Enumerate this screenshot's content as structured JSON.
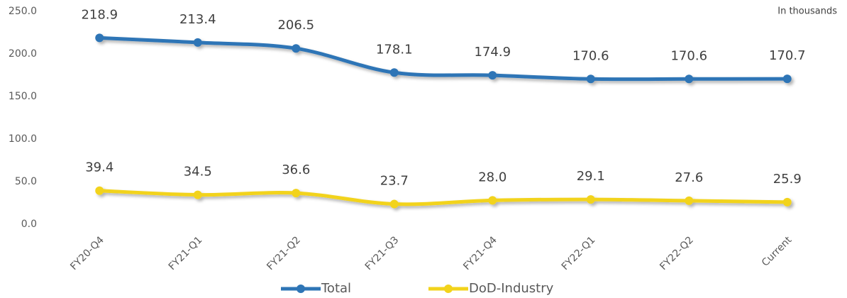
{
  "chart_data": {
    "type": "line",
    "annotation": "In thousands",
    "categories": [
      "FY20-Q4",
      "FY21-Q1",
      "FY21-Q2",
      "FY21-Q3",
      "FY21-Q4",
      "FY22-Q1",
      "FY22-Q2",
      "Current"
    ],
    "series": [
      {
        "name": "Total",
        "color": "#2e75b6",
        "values": [
          218.9,
          213.4,
          206.5,
          178.1,
          174.9,
          170.6,
          170.6,
          170.7
        ],
        "value_labels": [
          "218.9",
          "213.4",
          "206.5",
          "178.1",
          "174.9",
          "170.6",
          "170.6",
          "170.7"
        ]
      },
      {
        "name": "DoD-Industry",
        "color": "#f2d31b",
        "values": [
          39.4,
          34.5,
          36.6,
          23.7,
          28.0,
          29.1,
          27.6,
          25.9
        ],
        "value_labels": [
          "39.4",
          "34.5",
          "36.6",
          "23.7",
          "28.0",
          "29.1",
          "27.6",
          "25.9"
        ]
      }
    ],
    "ylim": [
      0,
      250
    ],
    "yticks": [
      {
        "value": 0,
        "label": "0.0"
      },
      {
        "value": 50,
        "label": "50.0"
      },
      {
        "value": 100,
        "label": "100.0"
      },
      {
        "value": 150,
        "label": "150.0"
      },
      {
        "value": 200,
        "label": "200.0"
      },
      {
        "value": 250,
        "label": "250.0"
      }
    ],
    "grid": false,
    "legend": "bottom"
  }
}
